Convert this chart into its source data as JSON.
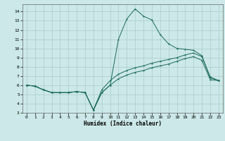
{
  "xlabel": "Humidex (Indice chaleur)",
  "bg_color": "#cce8e8",
  "grid_color": "#aacccc",
  "line_color": "#1a6b5a",
  "xlim": [
    -0.5,
    23.5
  ],
  "ylim": [
    3,
    14.8
  ],
  "xticks": [
    0,
    1,
    2,
    3,
    4,
    5,
    6,
    7,
    8,
    9,
    10,
    11,
    12,
    13,
    14,
    15,
    16,
    17,
    18,
    19,
    20,
    21,
    22,
    23
  ],
  "yticks": [
    3,
    4,
    5,
    6,
    7,
    8,
    9,
    10,
    11,
    12,
    13,
    14
  ],
  "xlabel_fontsize": 5.5,
  "tick_fontsize": 4.5,
  "curve1_x": [
    0,
    1,
    2,
    3,
    4,
    5,
    6,
    7,
    8,
    9,
    10,
    11,
    12,
    13,
    14,
    15,
    16,
    17,
    18,
    19,
    20,
    21,
    22,
    23
  ],
  "curve1_y": [
    6.0,
    5.9,
    5.5,
    5.2,
    5.2,
    5.2,
    5.3,
    5.2,
    3.3,
    5.5,
    6.5,
    7.2,
    7.6,
    7.9,
    8.1,
    8.4,
    8.6,
    8.8,
    9.0,
    9.3,
    9.5,
    9.1,
    6.9,
    6.5
  ],
  "curve2_x": [
    0,
    1,
    2,
    3,
    4,
    5,
    6,
    7,
    8,
    9,
    10,
    11,
    12,
    13,
    14,
    15,
    16,
    17,
    18,
    19,
    20,
    21,
    22,
    23
  ],
  "curve2_y": [
    6.0,
    5.9,
    5.5,
    5.2,
    5.2,
    5.2,
    5.3,
    5.2,
    3.3,
    5.2,
    6.0,
    6.7,
    7.1,
    7.4,
    7.6,
    7.9,
    8.1,
    8.3,
    8.6,
    8.9,
    9.1,
    8.7,
    6.6,
    6.5
  ],
  "curve3_x": [
    0,
    1,
    2,
    3,
    4,
    5,
    6,
    7,
    8,
    9,
    10,
    11,
    12,
    13,
    14,
    15,
    16,
    17,
    18,
    19,
    20,
    21,
    22,
    23
  ],
  "curve3_y": [
    6.0,
    5.9,
    5.5,
    5.2,
    5.2,
    5.2,
    5.3,
    5.2,
    3.3,
    5.2,
    6.0,
    11.0,
    13.2,
    14.3,
    13.5,
    13.1,
    11.5,
    10.5,
    10.0,
    9.9,
    9.8,
    9.2,
    6.8,
    6.5
  ]
}
